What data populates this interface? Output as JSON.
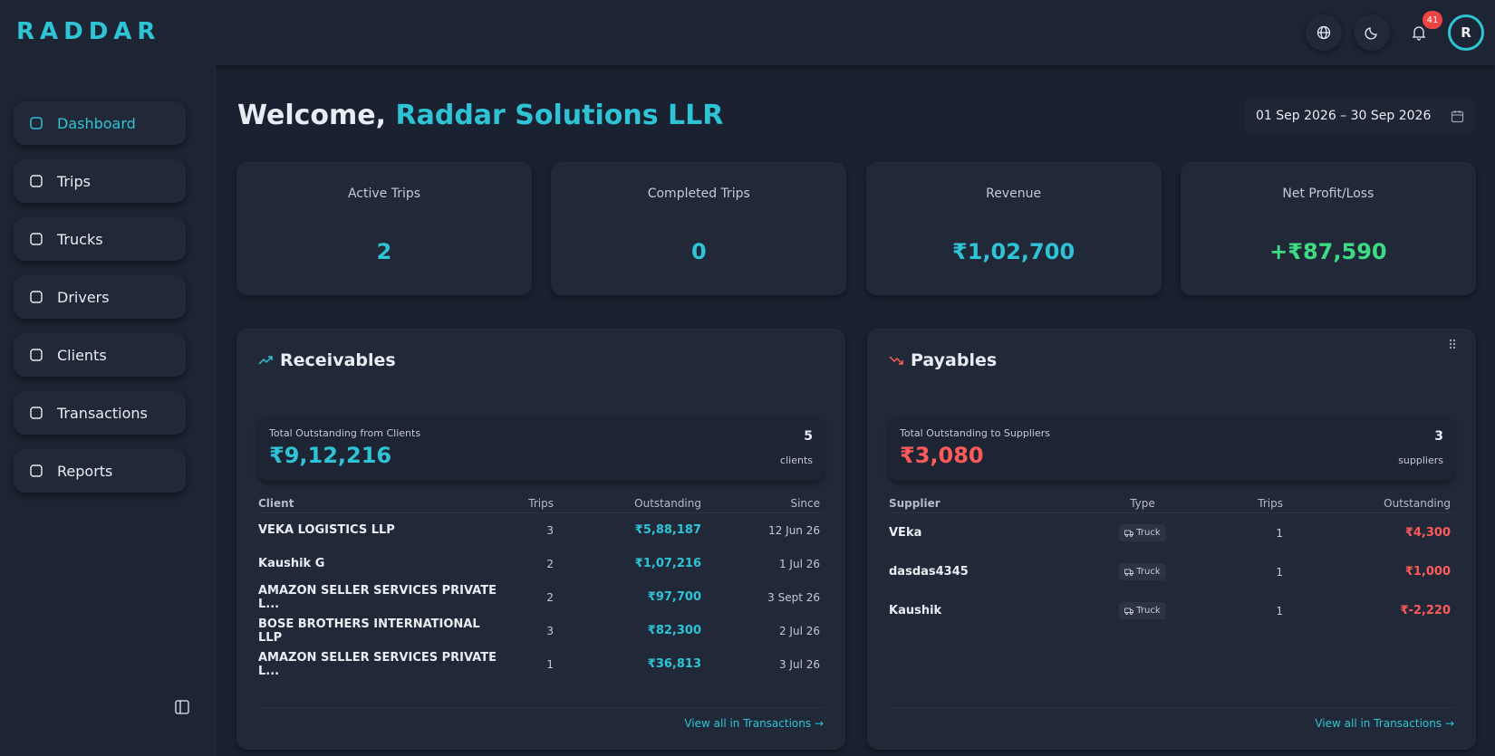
{
  "header": {
    "logo": "RADDAR",
    "notifications": "41",
    "avatar": "R"
  },
  "sidebar": {
    "items": [
      "Dashboard",
      "Trips",
      "Trucks",
      "Drivers",
      "Clients",
      "Transactions",
      "Reports"
    ]
  },
  "welcome": {
    "greeting": "Welcome,",
    "name": "Raddar Solutions LLR"
  },
  "date_range": "01 Sep 2026 – 30 Sep 2026",
  "stats": [
    {
      "label": "Active Trips",
      "value": "2"
    },
    {
      "label": "Completed Trips",
      "value": "0"
    },
    {
      "label": "Revenue",
      "value": "₹1,02,700"
    },
    {
      "label": "Net Profit/Loss",
      "value": "+₹87,590"
    }
  ],
  "receivables": {
    "title": "Receivables",
    "summary_label": "Total Outstanding from Clients",
    "summary_value": "₹9,12,216",
    "count": "5",
    "count_unit": "clients",
    "columns": [
      "Client",
      "Trips",
      "Outstanding",
      "Since"
    ],
    "rows": [
      [
        "VEKA LOGISTICS LLP",
        "3",
        "₹5,88,187",
        "12 Jun 26"
      ],
      [
        "Kaushik G",
        "2",
        "₹1,07,216",
        "1 Jul 26"
      ],
      [
        "AMAZON SELLER SERVICES PRIVATE L...",
        "2",
        "₹97,700",
        "3 Sept 26"
      ],
      [
        "BOSE BROTHERS INTERNATIONAL LLP",
        "3",
        "₹82,300",
        "2 Jul 26"
      ],
      [
        "AMAZON SELLER SERVICES PRIVATE L...",
        "1",
        "₹36,813",
        "3 Jul 26"
      ]
    ],
    "link": "View all in Transactions"
  },
  "payables": {
    "title": "Payables",
    "summary_label": "Total Outstanding to Suppliers",
    "summary_value": "₹3,080",
    "count": "3",
    "count_unit": "suppliers",
    "columns": [
      "Supplier",
      "Type",
      "Trips",
      "Outstanding"
    ],
    "rows": [
      [
        "VEka",
        "Truck",
        "1",
        "₹4,300"
      ],
      [
        "dasdas4345",
        "Truck",
        "1",
        "₹1,000"
      ],
      [
        "Kaushik",
        "Truck",
        "1",
        "₹-2,220"
      ]
    ],
    "link": "View all in Transactions"
  }
}
